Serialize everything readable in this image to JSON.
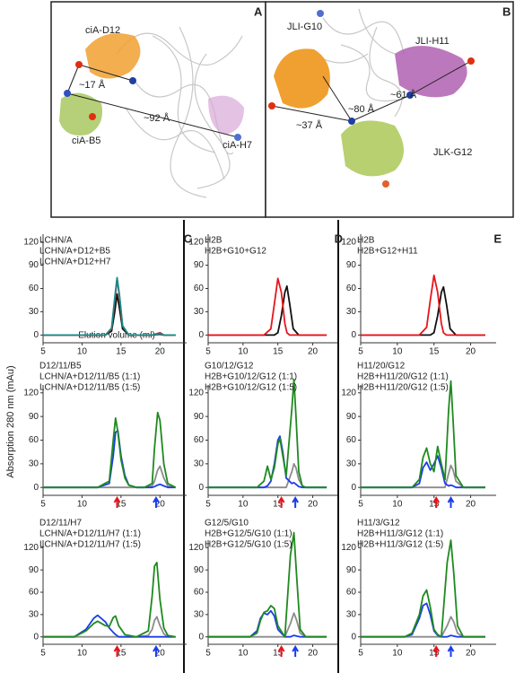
{
  "panels": [
    {
      "letter": "A",
      "labels": [
        "ciA-D12",
        "~17 Å",
        "~92 Å",
        "ciA-B5",
        "ciA-H7"
      ]
    },
    {
      "letter": "B",
      "labels": [
        "JLI-G10",
        "JLI-H11",
        "~80 Å",
        "~61 Å",
        "~37 Å",
        "JLK-G12"
      ]
    }
  ],
  "y_label": "Absorption 280 nm (mAu)",
  "chart_data": [
    {
      "type": "line",
      "panel": "C",
      "x_label": "Elution volume (ml)",
      "x": [
        5,
        10,
        13,
        13.8,
        14.2,
        14.5,
        14.8,
        15.2,
        16,
        19,
        20,
        20.5,
        22
      ],
      "series": [
        {
          "name": "LCHN/A",
          "color": "#111111",
          "values": [
            0,
            0,
            0,
            5,
            30,
            53,
            35,
            8,
            0,
            0,
            1,
            0,
            0
          ]
        },
        {
          "name": "LCHN/A+D12+B5",
          "color": "#e8141c",
          "values": [
            0,
            0,
            0,
            8,
            45,
            72,
            50,
            12,
            0,
            0,
            3,
            0,
            0
          ]
        },
        {
          "name": "LCHN/A+D12+H7",
          "color": "#1a8a8a",
          "values": [
            0,
            0,
            0,
            9,
            48,
            74,
            52,
            12,
            0,
            0,
            2,
            0,
            0
          ]
        }
      ],
      "xlim": [
        5,
        22.5
      ],
      "xticks": [
        5,
        10,
        15,
        20
      ],
      "ylim": [
        -10,
        130
      ],
      "yticks": [
        0,
        30,
        60,
        90,
        120
      ]
    },
    {
      "type": "line",
      "panel": "D",
      "x": [
        5,
        13,
        14,
        14.5,
        15,
        15.5,
        16,
        16.3,
        16.7,
        17.2,
        18,
        22
      ],
      "series": [
        {
          "name": "H2B",
          "color": "#111111",
          "values": [
            0,
            0,
            0,
            0,
            3,
            25,
            55,
            63,
            40,
            8,
            0,
            0
          ]
        },
        {
          "name": "H2B+G10+G12",
          "color": "#e8141c",
          "values": [
            0,
            0,
            8,
            40,
            73,
            55,
            15,
            3,
            0,
            0,
            0,
            0
          ]
        }
      ],
      "xlim": [
        5,
        22.5
      ],
      "xticks": [
        5,
        10,
        15,
        20
      ],
      "ylim": [
        -10,
        130
      ],
      "yticks": [
        0,
        30,
        60,
        90,
        120
      ]
    },
    {
      "type": "line",
      "panel": "E",
      "x": [
        5,
        13,
        14,
        14.5,
        15,
        15.5,
        16,
        16.3,
        16.7,
        17.2,
        18,
        22
      ],
      "series": [
        {
          "name": "H2B",
          "color": "#111111",
          "values": [
            0,
            0,
            0,
            0,
            3,
            25,
            55,
            62,
            40,
            8,
            0,
            0
          ]
        },
        {
          "name": "H2B+G12+H11",
          "color": "#e8141c",
          "values": [
            0,
            0,
            10,
            45,
            77,
            55,
            15,
            3,
            0,
            0,
            0,
            0
          ]
        }
      ],
      "xlim": [
        5,
        22.5
      ],
      "xticks": [
        5,
        10,
        15,
        20
      ],
      "ylim": [
        -10,
        130
      ],
      "yticks": [
        0,
        30,
        60,
        90,
        120
      ]
    },
    {
      "type": "line",
      "x": [
        5,
        10,
        12,
        13.5,
        14,
        14.3,
        14.6,
        15,
        15.5,
        16,
        17,
        18,
        19,
        19.3,
        19.7,
        20,
        20.5,
        21,
        22
      ],
      "series": [
        {
          "name": "D12/11/B5",
          "color": "#8c8c8c",
          "values": [
            0,
            0,
            0,
            0,
            0,
            0,
            0,
            0,
            0,
            0,
            0,
            0,
            2,
            8,
            22,
            27,
            12,
            2,
            0
          ]
        },
        {
          "name": "LCHN/A+D12/11/B5 (1:1)",
          "color": "#1b3de8",
          "values": [
            0,
            0,
            0,
            5,
            40,
            70,
            72,
            40,
            15,
            3,
            0,
            0,
            0,
            1,
            3,
            4,
            2,
            0,
            0
          ]
        },
        {
          "name": "LCHN/A+D12/11/B5 (1:5)",
          "color": "#1f8a1f",
          "values": [
            0,
            0,
            0,
            8,
            60,
            88,
            70,
            35,
            12,
            3,
            0,
            0,
            5,
            50,
            95,
            85,
            30,
            5,
            0
          ]
        }
      ],
      "markers": [
        {
          "color": "#e8141c",
          "x": 14.5
        },
        {
          "color": "#1b3de8",
          "x": 19.5
        }
      ],
      "xlim": [
        5,
        22.5
      ],
      "xticks": [
        5,
        10,
        15,
        20
      ],
      "ylim": [
        -10,
        130
      ],
      "yticks": [
        0,
        30,
        60,
        90,
        120
      ]
    },
    {
      "type": "line",
      "x": [
        5,
        12,
        13,
        13.5,
        14,
        14.5,
        15,
        15.3,
        15.7,
        16.2,
        17,
        17.3,
        17.6,
        18,
        18.5,
        19,
        22
      ],
      "series": [
        {
          "name": "G10/12/G12",
          "color": "#8c8c8c",
          "values": [
            0,
            0,
            0,
            0,
            0,
            0,
            0,
            0,
            0,
            0,
            20,
            30,
            25,
            10,
            2,
            0,
            0
          ]
        },
        {
          "name": "H2B+G10/12/G12 (1:1)",
          "color": "#1b3de8",
          "values": [
            0,
            0,
            0,
            2,
            8,
            30,
            60,
            65,
            45,
            12,
            5,
            6,
            4,
            1,
            0,
            0,
            0
          ]
        },
        {
          "name": "H2B+G10/12/G12 (1:5)",
          "color": "#1f8a1f",
          "values": [
            0,
            0,
            8,
            27,
            10,
            25,
            55,
            62,
            40,
            15,
            100,
            137,
            90,
            20,
            2,
            0,
            0
          ]
        }
      ],
      "markers": [
        {
          "color": "#e8141c",
          "x": 15.5
        },
        {
          "color": "#1b3de8",
          "x": 17.5
        }
      ],
      "xlim": [
        5,
        22.5
      ],
      "xticks": [
        5,
        10,
        15,
        20
      ],
      "ylim": [
        -10,
        130
      ],
      "yticks": [
        0,
        30,
        60,
        90,
        120
      ]
    },
    {
      "type": "line",
      "x": [
        5,
        12,
        13,
        13.5,
        14,
        14.5,
        15,
        15.5,
        16,
        16.5,
        17,
        17.3,
        17.6,
        18,
        19,
        22
      ],
      "series": [
        {
          "name": "H11/20/G12",
          "color": "#8c8c8c",
          "values": [
            0,
            0,
            0,
            0,
            0,
            0,
            0,
            0,
            0,
            0,
            18,
            28,
            22,
            8,
            0,
            0
          ]
        },
        {
          "name": "H2B+H11/20/G12 (1:1)",
          "color": "#1b3de8",
          "values": [
            0,
            0,
            5,
            25,
            32,
            22,
            30,
            40,
            25,
            5,
            2,
            3,
            2,
            0,
            0,
            0
          ]
        },
        {
          "name": "H2B+H11/20/G12 (1:5)",
          "color": "#1f8a1f",
          "values": [
            0,
            0,
            10,
            38,
            50,
            30,
            20,
            52,
            30,
            10,
            100,
            135,
            85,
            15,
            0,
            0
          ]
        }
      ],
      "markers": [
        {
          "color": "#e8141c",
          "x": 15.3
        },
        {
          "color": "#1b3de8",
          "x": 17.3
        }
      ],
      "xlim": [
        5,
        22.5
      ],
      "xticks": [
        5,
        10,
        15,
        20
      ],
      "ylim": [
        -10,
        130
      ],
      "yticks": [
        0,
        30,
        60,
        90,
        120
      ]
    },
    {
      "type": "line",
      "x": [
        5,
        9,
        10.5,
        11.5,
        12,
        13,
        13.5,
        14,
        14.3,
        14.7,
        15.5,
        17,
        18.5,
        19,
        19.3,
        19.6,
        20,
        20.5,
        21,
        22
      ],
      "series": [
        {
          "name": "D12/11/H7",
          "color": "#8c8c8c",
          "values": [
            0,
            0,
            0,
            0,
            0,
            0,
            0,
            0,
            0,
            0,
            0,
            0,
            2,
            10,
            22,
            27,
            15,
            4,
            0,
            0
          ]
        },
        {
          "name": "LCHN/A+D12/11/H7 (1:1)",
          "color": "#1b3de8",
          "values": [
            0,
            0,
            10,
            25,
            29,
            20,
            12,
            6,
            3,
            0,
            0,
            0,
            0,
            0,
            0,
            0,
            0,
            0,
            0,
            0
          ]
        },
        {
          "name": "LCHN/A+D12/11/H7 (1:5)",
          "color": "#1f8a1f",
          "values": [
            0,
            0,
            8,
            18,
            21,
            15,
            14,
            26,
            28,
            15,
            3,
            0,
            8,
            55,
            95,
            100,
            50,
            12,
            2,
            0
          ]
        }
      ],
      "markers": [
        {
          "color": "#e8141c",
          "x": 14.5
        },
        {
          "color": "#1b3de8",
          "x": 19.5
        }
      ],
      "xlim": [
        5,
        22.5
      ],
      "xticks": [
        5,
        10,
        15,
        20
      ],
      "ylim": [
        -10,
        130
      ],
      "yticks": [
        0,
        30,
        60,
        90,
        120
      ]
    },
    {
      "type": "line",
      "x": [
        5,
        11,
        12,
        12.5,
        13,
        13.5,
        14,
        14.5,
        15,
        16,
        16.8,
        17.3,
        17.7,
        18.2,
        19,
        22
      ],
      "series": [
        {
          "name": "G12/5/G10",
          "color": "#8c8c8c",
          "values": [
            0,
            0,
            0,
            0,
            0,
            0,
            0,
            0,
            0,
            0,
            18,
            32,
            22,
            5,
            0,
            0
          ]
        },
        {
          "name": "H2B+G12/5/G10 (1:1)",
          "color": "#1b3de8",
          "values": [
            0,
            0,
            8,
            25,
            32,
            30,
            35,
            28,
            10,
            0,
            0,
            2,
            1,
            0,
            0,
            0
          ]
        },
        {
          "name": "H2B+G12/5/G10 (1:5)",
          "color": "#1f8a1f",
          "values": [
            0,
            0,
            5,
            22,
            33,
            35,
            42,
            38,
            15,
            0,
            110,
            140,
            80,
            10,
            0,
            0
          ]
        }
      ],
      "markers": [
        {
          "color": "#e8141c",
          "x": 15.5
        },
        {
          "color": "#1b3de8",
          "x": 17.5
        }
      ],
      "xlim": [
        5,
        22.5
      ],
      "xticks": [
        5,
        10,
        15,
        20
      ],
      "ylim": [
        -10,
        130
      ],
      "yticks": [
        0,
        30,
        60,
        90,
        120
      ]
    },
    {
      "type": "line",
      "x": [
        5,
        11,
        12,
        13,
        13.5,
        14,
        14.5,
        15,
        15.5,
        16,
        16.8,
        17.3,
        17.7,
        18.2,
        19,
        22
      ],
      "series": [
        {
          "name": "H11/3/G12",
          "color": "#8c8c8c",
          "values": [
            0,
            0,
            0,
            0,
            0,
            0,
            0,
            0,
            0,
            0,
            15,
            27,
            20,
            5,
            0,
            0
          ]
        },
        {
          "name": "H2B+H11/3/G12 (1:1)",
          "color": "#1b3de8",
          "values": [
            0,
            0,
            3,
            25,
            42,
            45,
            30,
            8,
            2,
            0,
            0,
            2,
            1,
            0,
            0,
            0
          ]
        },
        {
          "name": "H2B+H11/3/G12 (1:5)",
          "color": "#1f8a1f",
          "values": [
            0,
            0,
            5,
            30,
            55,
            63,
            40,
            10,
            3,
            0,
            100,
            130,
            85,
            15,
            0,
            0
          ]
        }
      ],
      "markers": [
        {
          "color": "#e8141c",
          "x": 15.3
        },
        {
          "color": "#1b3de8",
          "x": 17.3
        }
      ],
      "xlim": [
        5,
        22.5
      ],
      "xticks": [
        5,
        10,
        15,
        20
      ],
      "ylim": [
        -10,
        130
      ],
      "yticks": [
        0,
        30,
        60,
        90,
        120
      ]
    }
  ]
}
